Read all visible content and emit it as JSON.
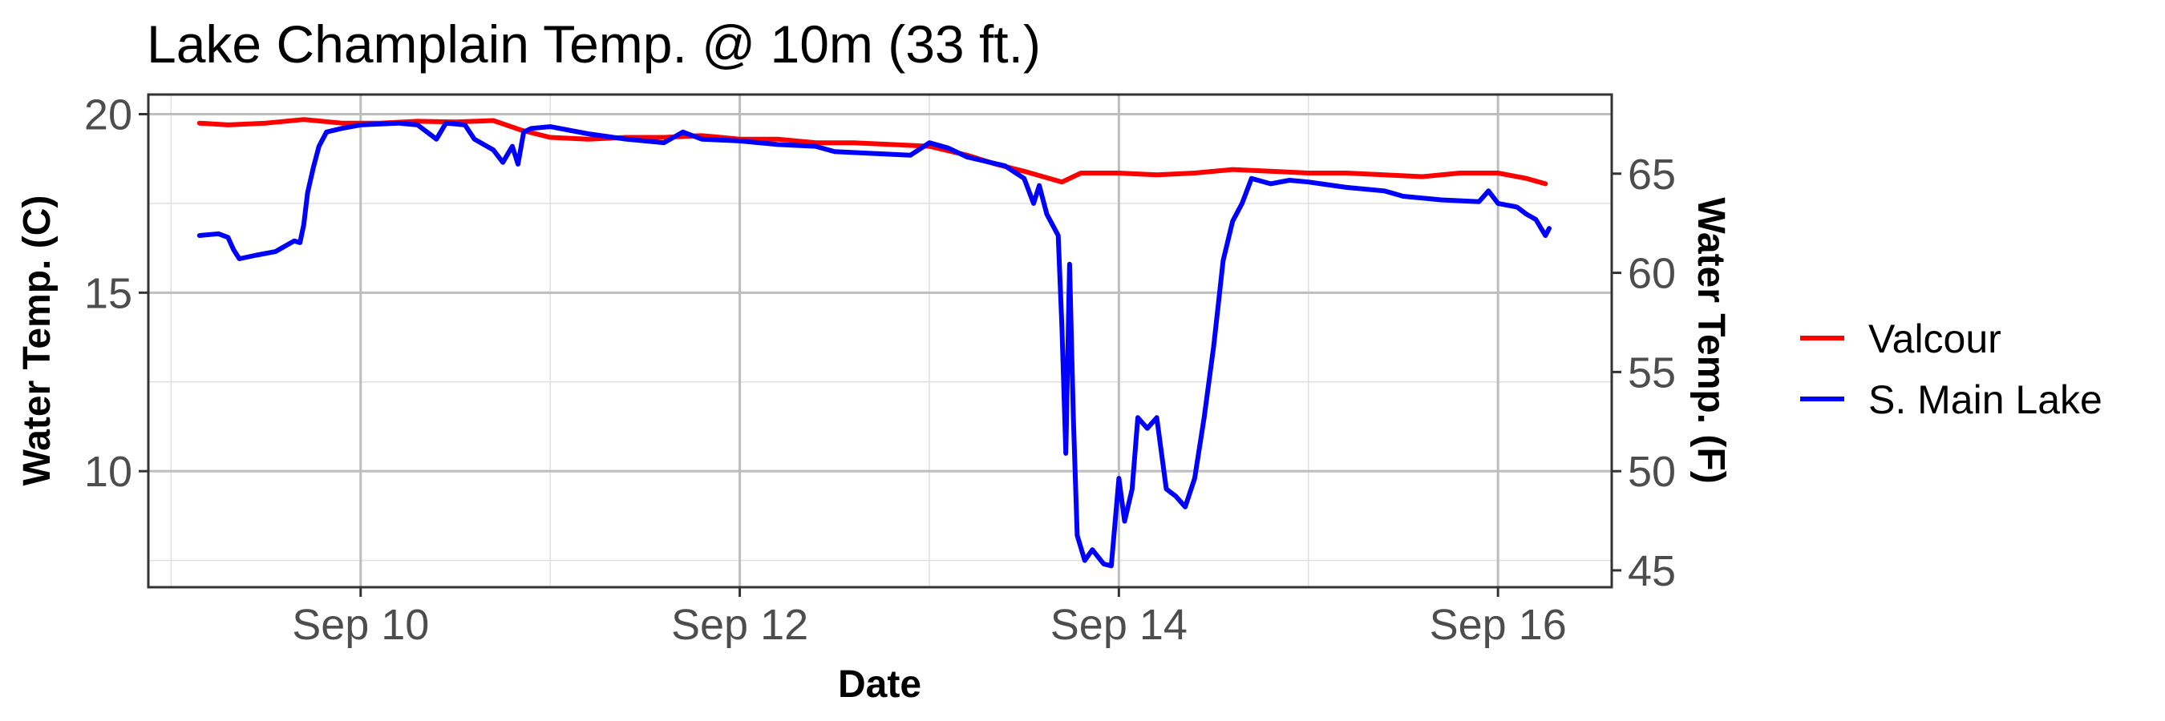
{
  "chart_data": {
    "type": "line",
    "title": "Lake Champlain Temp. @ 10m (33 ft.)",
    "xlabel": "Date",
    "ylabel": "Water Temp. (C)",
    "y2label": "Water Temp. (F)",
    "x_ticks": [
      {
        "x": 10,
        "label": "Sep 10"
      },
      {
        "x": 12,
        "label": "Sep 12"
      },
      {
        "x": 14,
        "label": "Sep 14"
      },
      {
        "x": 16,
        "label": "Sep 16"
      }
    ],
    "y_ticks": [
      10,
      15,
      20
    ],
    "y2_ticks": [
      45,
      50,
      55,
      60,
      65
    ],
    "xlim": [
      8.88,
      16.6
    ],
    "ylim": [
      6.75,
      20.55
    ],
    "grid": true,
    "legend_position": "right",
    "series": [
      {
        "name": "Valcour",
        "color": "#ff0000",
        "points": [
          [
            9.15,
            19.75
          ],
          [
            9.3,
            19.7
          ],
          [
            9.5,
            19.75
          ],
          [
            9.7,
            19.85
          ],
          [
            9.9,
            19.75
          ],
          [
            10.1,
            19.75
          ],
          [
            10.3,
            19.8
          ],
          [
            10.5,
            19.78
          ],
          [
            10.7,
            19.82
          ],
          [
            10.85,
            19.55
          ],
          [
            11.0,
            19.35
          ],
          [
            11.2,
            19.3
          ],
          [
            11.4,
            19.35
          ],
          [
            11.6,
            19.35
          ],
          [
            11.8,
            19.4
          ],
          [
            12.0,
            19.3
          ],
          [
            12.2,
            19.3
          ],
          [
            12.4,
            19.2
          ],
          [
            12.6,
            19.2
          ],
          [
            12.8,
            19.15
          ],
          [
            13.0,
            19.1
          ],
          [
            13.2,
            18.85
          ],
          [
            13.35,
            18.6
          ],
          [
            13.5,
            18.4
          ],
          [
            13.6,
            18.25
          ],
          [
            13.7,
            18.1
          ],
          [
            13.8,
            18.35
          ],
          [
            14.0,
            18.35
          ],
          [
            14.2,
            18.3
          ],
          [
            14.4,
            18.35
          ],
          [
            14.6,
            18.45
          ],
          [
            14.8,
            18.4
          ],
          [
            15.0,
            18.35
          ],
          [
            15.2,
            18.35
          ],
          [
            15.4,
            18.3
          ],
          [
            15.6,
            18.25
          ],
          [
            15.8,
            18.35
          ],
          [
            16.0,
            18.35
          ],
          [
            16.15,
            18.2
          ],
          [
            16.25,
            18.05
          ]
        ]
      },
      {
        "name": "S. Main Lake",
        "color": "#0000ff",
        "points": [
          [
            9.15,
            16.6
          ],
          [
            9.25,
            16.65
          ],
          [
            9.3,
            16.55
          ],
          [
            9.33,
            16.2
          ],
          [
            9.36,
            15.95
          ],
          [
            9.45,
            16.05
          ],
          [
            9.55,
            16.15
          ],
          [
            9.6,
            16.3
          ],
          [
            9.65,
            16.45
          ],
          [
            9.68,
            16.4
          ],
          [
            9.7,
            16.9
          ],
          [
            9.72,
            17.8
          ],
          [
            9.75,
            18.5
          ],
          [
            9.78,
            19.1
          ],
          [
            9.82,
            19.5
          ],
          [
            9.9,
            19.6
          ],
          [
            10.0,
            19.7
          ],
          [
            10.2,
            19.75
          ],
          [
            10.3,
            19.7
          ],
          [
            10.4,
            19.3
          ],
          [
            10.45,
            19.75
          ],
          [
            10.55,
            19.7
          ],
          [
            10.6,
            19.3
          ],
          [
            10.7,
            19.0
          ],
          [
            10.75,
            18.65
          ],
          [
            10.8,
            19.1
          ],
          [
            10.83,
            18.6
          ],
          [
            10.86,
            19.5
          ],
          [
            10.9,
            19.6
          ],
          [
            11.0,
            19.65
          ],
          [
            11.2,
            19.45
          ],
          [
            11.4,
            19.3
          ],
          [
            11.6,
            19.2
          ],
          [
            11.7,
            19.5
          ],
          [
            11.8,
            19.3
          ],
          [
            12.0,
            19.25
          ],
          [
            12.2,
            19.15
          ],
          [
            12.4,
            19.1
          ],
          [
            12.5,
            18.95
          ],
          [
            12.7,
            18.9
          ],
          [
            12.9,
            18.85
          ],
          [
            13.0,
            19.2
          ],
          [
            13.1,
            19.05
          ],
          [
            13.2,
            18.8
          ],
          [
            13.4,
            18.55
          ],
          [
            13.5,
            18.2
          ],
          [
            13.55,
            17.5
          ],
          [
            13.58,
            18.0
          ],
          [
            13.62,
            17.2
          ],
          [
            13.68,
            16.6
          ],
          [
            13.7,
            14.0
          ],
          [
            13.72,
            10.5
          ],
          [
            13.74,
            15.8
          ],
          [
            13.76,
            11.5
          ],
          [
            13.78,
            8.2
          ],
          [
            13.82,
            7.5
          ],
          [
            13.86,
            7.8
          ],
          [
            13.92,
            7.4
          ],
          [
            13.96,
            7.35
          ],
          [
            14.0,
            9.8
          ],
          [
            14.03,
            8.6
          ],
          [
            14.07,
            9.5
          ],
          [
            14.1,
            11.5
          ],
          [
            14.15,
            11.2
          ],
          [
            14.2,
            11.5
          ],
          [
            14.25,
            9.5
          ],
          [
            14.3,
            9.3
          ],
          [
            14.35,
            9.0
          ],
          [
            14.4,
            9.8
          ],
          [
            14.45,
            11.5
          ],
          [
            14.5,
            13.5
          ],
          [
            14.55,
            15.9
          ],
          [
            14.6,
            17.0
          ],
          [
            14.65,
            17.5
          ],
          [
            14.7,
            18.2
          ],
          [
            14.8,
            18.05
          ],
          [
            14.9,
            18.15
          ],
          [
            15.0,
            18.1
          ],
          [
            15.2,
            17.95
          ],
          [
            15.4,
            17.85
          ],
          [
            15.5,
            17.7
          ],
          [
            15.7,
            17.6
          ],
          [
            15.9,
            17.55
          ],
          [
            15.95,
            17.85
          ],
          [
            16.0,
            17.5
          ],
          [
            16.1,
            17.4
          ],
          [
            16.15,
            17.2
          ],
          [
            16.2,
            17.05
          ],
          [
            16.25,
            16.6
          ],
          [
            16.27,
            16.8
          ]
        ]
      }
    ]
  }
}
